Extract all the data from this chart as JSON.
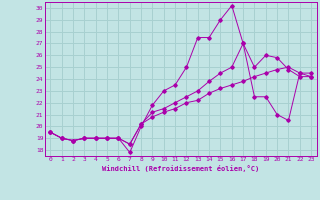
{
  "xlabel": "Windchill (Refroidissement éolien,°C)",
  "xlim": [
    -0.5,
    23.5
  ],
  "ylim": [
    17.5,
    30.5
  ],
  "yticks": [
    18,
    19,
    20,
    21,
    22,
    23,
    24,
    25,
    26,
    27,
    28,
    29,
    30
  ],
  "xticks": [
    0,
    1,
    2,
    3,
    4,
    5,
    6,
    7,
    8,
    9,
    10,
    11,
    12,
    13,
    14,
    15,
    16,
    17,
    18,
    19,
    20,
    21,
    22,
    23
  ],
  "background_color": "#c2e4e4",
  "grid_color": "#a8d0d0",
  "line_color": "#aa00aa",
  "line1_x": [
    0,
    1,
    2,
    3,
    4,
    5,
    6,
    7,
    8,
    9,
    10,
    11,
    12,
    13,
    14,
    15,
    16,
    17,
    18,
    19,
    20,
    21,
    22,
    23
  ],
  "line1_y": [
    19.5,
    19.0,
    18.8,
    19.0,
    19.0,
    19.0,
    19.0,
    17.8,
    20.0,
    21.8,
    23.0,
    23.5,
    25.0,
    27.5,
    27.5,
    29.0,
    30.2,
    27.0,
    22.5,
    22.5,
    21.0,
    20.5,
    24.5,
    24.5
  ],
  "line2_x": [
    0,
    1,
    2,
    3,
    4,
    5,
    6,
    7,
    8,
    9,
    10,
    11,
    12,
    13,
    14,
    15,
    16,
    17,
    18,
    19,
    20,
    21,
    22,
    23
  ],
  "line2_y": [
    19.5,
    19.0,
    18.8,
    19.0,
    19.0,
    19.0,
    19.0,
    18.5,
    20.2,
    21.2,
    21.5,
    22.0,
    22.5,
    23.0,
    23.8,
    24.5,
    25.0,
    27.0,
    25.0,
    26.0,
    25.8,
    24.8,
    24.2,
    24.2
  ],
  "line3_x": [
    0,
    1,
    2,
    3,
    4,
    5,
    6,
    7,
    8,
    9,
    10,
    11,
    12,
    13,
    14,
    15,
    16,
    17,
    18,
    19,
    20,
    21,
    22,
    23
  ],
  "line3_y": [
    19.5,
    19.0,
    18.8,
    19.0,
    19.0,
    19.0,
    19.0,
    18.5,
    20.2,
    20.8,
    21.2,
    21.5,
    22.0,
    22.2,
    22.8,
    23.2,
    23.5,
    23.8,
    24.2,
    24.5,
    24.8,
    25.0,
    24.5,
    24.2
  ]
}
